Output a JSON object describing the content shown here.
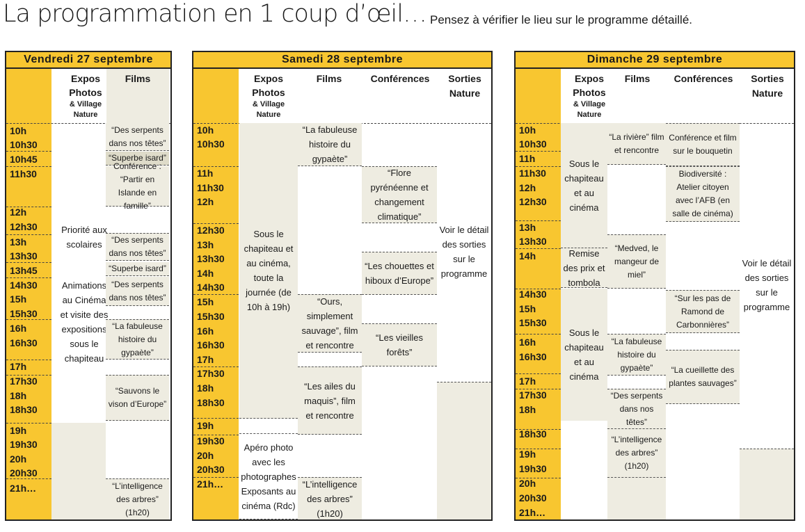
{
  "header": {
    "title": "La programmation en 1 coup d’œil…",
    "subtitle": "Pensez à vérifier le lieu sur le programme détaillé."
  },
  "columns": {
    "expos": "Expos Photos",
    "village": "& Village Nature",
    "films": "Films",
    "conferences": "Conférences",
    "sorties": "Sorties Nature"
  },
  "friday": {
    "title": "Vendredi 27 septembre",
    "times": [
      "10h",
      "10h30",
      "10h45",
      "11h30",
      "12h",
      "12h30",
      "13h",
      "13h30",
      "13h45",
      "14h30",
      "15h",
      "15h30",
      "16h",
      "16h30",
      "17h",
      "17h30",
      "18h",
      "18h30",
      "19h",
      "19h30",
      "20h",
      "20h30",
      "21h…"
    ],
    "expos": "Priorité aux scolaires",
    "expos2": "Animations au Cinéma et visite des expositions sous le chapiteau",
    "films": [
      "“Des serpents dans nos têtes”",
      "“Superbe isard”",
      "Conférence : “Partir en Islande en famille”",
      "“Des serpents dans nos têtes”",
      "“Superbe isard”",
      "“Des serpents dans nos têtes”",
      "“La fabuleuse histoire du gypaète”",
      "“Sauvons le vison d’Europe”",
      "“L’intelligence des arbres” (1h20)"
    ]
  },
  "saturday": {
    "title": "Samedi 28 septembre",
    "times": [
      "10h",
      "10h30",
      "11h",
      "11h30",
      "12h",
      "12h30",
      "13h",
      "13h30",
      "14h",
      "14h30",
      "15h",
      "15h30",
      "16h",
      "16h30",
      "17h",
      "17h30",
      "18h",
      "18h30",
      "19h",
      "19h30",
      "20h",
      "20h30",
      "21h…"
    ],
    "expos": "Sous le chapiteau et au cinéma, toute la journée (de 10h à 19h)",
    "expos2": "Apéro photo avec les photographes Exposants au cinéma (Rdc)",
    "films": [
      "“La fabuleuse histoire du gypaète”",
      "“Ours, simplement sauvage”, film et rencontre",
      "“Les ailes du maquis”, film et rencontre",
      "“L’intelligence des arbres” (1h20)"
    ],
    "conferences": [
      "“Flore pyrénéenne et changement climatique”",
      "“Les chouettes et hiboux d’Europe”",
      "“Les vieilles forêts”"
    ],
    "sorties": "Voir le détail des sorties sur le programme"
  },
  "sunday": {
    "title": "Dimanche 29 septembre",
    "times": [
      "10h",
      "10h30",
      "11h",
      "11h30",
      "12h",
      "12h30",
      "13h",
      "13h30",
      "14h",
      "14h30",
      "15h",
      "15h30",
      "16h",
      "16h30",
      "17h",
      "17h30",
      "18h",
      "18h30",
      "19h",
      "19h30",
      "20h",
      "20h30",
      "21h…"
    ],
    "expos": "Sous le chapiteau et au cinéma",
    "expos2": "Remise des prix et tombola",
    "expos3": "Sous le chapiteau et au cinéma",
    "films": [
      "“La rivière” film et rencontre",
      "“Medved, le mangeur de miel”",
      "“La fabuleuse histoire du gypaète”",
      "“Des serpents dans nos têtes”",
      "“L’intelligence des arbres” (1h20)"
    ],
    "conferences": [
      "Conférence et film sur le bouquetin",
      "Biodiversité : Atelier citoyen avec l’AFB (en salle de cinéma)",
      "“Sur les pas de Ramond de Carbonnières”",
      "“La cueillette des plantes sauvages”"
    ],
    "sorties": "Voir le détail des sorties sur le programme"
  }
}
